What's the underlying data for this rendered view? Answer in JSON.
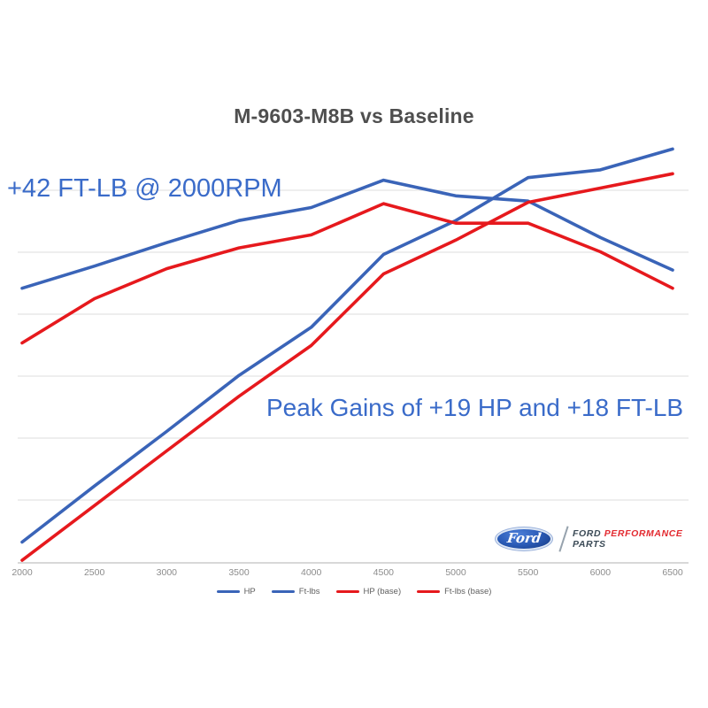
{
  "title": "M-9603-M8B vs Baseline",
  "annotations": {
    "torque_gain": "+42 FT-LB @ 2000RPM",
    "peak_gains": "Peak Gains of +19 HP and +18 FT-LB"
  },
  "colors": {
    "line_new": "#3a64b8",
    "line_base": "#e6191d",
    "annotation": "#3a6bc9",
    "title": "#4f4f4f",
    "grid": "#e3e3e3",
    "axis": "#cccccc",
    "tick_label": "#8c8c8c",
    "legend_label": "#5f5f5f"
  },
  "chart_data": {
    "type": "line",
    "title": "M-9603-M8B vs Baseline",
    "xlabel": "",
    "ylabel": "",
    "x": [
      2000,
      2500,
      3000,
      3500,
      4000,
      4500,
      5000,
      5500,
      6000,
      6500
    ],
    "x_tick_labels": [
      "2000",
      "2500",
      "3000",
      "3500",
      "4000",
      "4500",
      "5000",
      "5500",
      "6000",
      "6500"
    ],
    "y_axis_labels_visible": false,
    "y_unit": "relative (y axis unlabeled on chart)",
    "grid": "horizontal",
    "legend_position": "bottom",
    "series": [
      {
        "name": "HP",
        "color": "#3a64b8",
        "values": [
          16,
          59,
          101,
          144,
          181,
          237,
          263,
          296,
          302,
          318
        ]
      },
      {
        "name": "Ft-lbs",
        "color": "#3a64b8",
        "values": [
          211,
          228,
          246,
          263,
          273,
          294,
          282,
          278,
          250,
          225
        ]
      },
      {
        "name": "HP (base)",
        "color": "#e6191d",
        "values": [
          2,
          44,
          86,
          128,
          167,
          222,
          248,
          277,
          288,
          299
        ]
      },
      {
        "name": "Ft-lbs (base)",
        "color": "#e6191d",
        "values": [
          169,
          203,
          226,
          242,
          252,
          276,
          261,
          261,
          239,
          211
        ]
      }
    ],
    "annotations": [
      "+42 FT-LB @ 2000RPM",
      "Peak Gains of +19 HP and +18 FT-LB"
    ]
  },
  "legend": {
    "items": [
      {
        "label": "HP",
        "color": "#3a64b8"
      },
      {
        "label": "Ft-lbs",
        "color": "#3a64b8"
      },
      {
        "label": "HP (base)",
        "color": "#e6191d"
      },
      {
        "label": "Ft-lbs (base)",
        "color": "#e6191d"
      }
    ]
  },
  "logo": {
    "oval_text": "Ford",
    "brand": "FORD",
    "performance": "PERFORMANCE",
    "parts": "PARTS"
  }
}
